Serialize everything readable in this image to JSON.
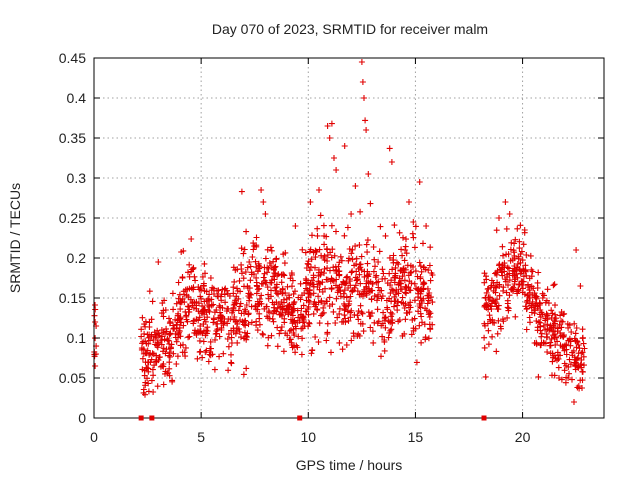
{
  "chart_data": {
    "type": "scatter",
    "title": "Day 070 of 2023, SRMTID for receiver malm",
    "xlabel": "GPS time / hours",
    "ylabel": "SRMTID / TECUs",
    "xlim": [
      0,
      23.8
    ],
    "ylim": [
      0,
      0.45
    ],
    "xticks": [
      0,
      5,
      10,
      15,
      20
    ],
    "xtick_labels": [
      "0",
      "5",
      "10",
      "15",
      "20"
    ],
    "yticks": [
      0,
      0.05,
      0.1,
      0.15,
      0.2,
      0.25,
      0.3,
      0.35,
      0.4,
      0.45
    ],
    "ytick_labels": [
      "0",
      "0.05",
      "0.1",
      "0.15",
      "0.2",
      "0.25",
      "0.3",
      "0.35",
      "0.4",
      "0.45"
    ],
    "grid": true,
    "marker": "+",
    "color": "#e00000",
    "series": [
      {
        "name": "SRMTID",
        "envelope": [
          {
            "hour": 0.0,
            "mean": 0.09,
            "spread": 0.03
          },
          {
            "hour": 2.3,
            "mean": 0.08,
            "spread": 0.035
          },
          {
            "hour": 3.0,
            "mean": 0.085,
            "spread": 0.035
          },
          {
            "hour": 3.8,
            "mean": 0.11,
            "spread": 0.04
          },
          {
            "hour": 4.5,
            "mean": 0.15,
            "spread": 0.04
          },
          {
            "hour": 5.5,
            "mean": 0.12,
            "spread": 0.035
          },
          {
            "hour": 6.5,
            "mean": 0.13,
            "spread": 0.04
          },
          {
            "hour": 7.5,
            "mean": 0.16,
            "spread": 0.04
          },
          {
            "hour": 8.5,
            "mean": 0.15,
            "spread": 0.04
          },
          {
            "hour": 9.5,
            "mean": 0.12,
            "spread": 0.04
          },
          {
            "hour": 10.5,
            "mean": 0.18,
            "spread": 0.045
          },
          {
            "hour": 11.5,
            "mean": 0.15,
            "spread": 0.04
          },
          {
            "hour": 12.5,
            "mean": 0.17,
            "spread": 0.045
          },
          {
            "hour": 13.5,
            "mean": 0.14,
            "spread": 0.04
          },
          {
            "hour": 14.5,
            "mean": 0.18,
            "spread": 0.04
          },
          {
            "hour": 15.6,
            "mean": 0.14,
            "spread": 0.04
          },
          {
            "hour": 18.3,
            "mean": 0.13,
            "spread": 0.04
          },
          {
            "hour": 19.0,
            "mean": 0.16,
            "spread": 0.04
          },
          {
            "hour": 19.8,
            "mean": 0.19,
            "spread": 0.03
          },
          {
            "hour": 20.5,
            "mean": 0.14,
            "spread": 0.035
          },
          {
            "hour": 21.5,
            "mean": 0.1,
            "spread": 0.03
          },
          {
            "hour": 22.8,
            "mean": 0.07,
            "spread": 0.025
          }
        ],
        "segments": [
          [
            0.0,
            0.1
          ],
          [
            2.2,
            15.8
          ],
          [
            18.2,
            22.9
          ]
        ],
        "outliers": [
          [
            0.05,
            0.12
          ],
          [
            0.05,
            0.065
          ],
          [
            0.1,
            0.115
          ],
          [
            3.0,
            0.195
          ],
          [
            6.9,
            0.283
          ],
          [
            7.1,
            0.233
          ],
          [
            7.8,
            0.285
          ],
          [
            7.9,
            0.27
          ],
          [
            8.0,
            0.255
          ],
          [
            9.4,
            0.24
          ],
          [
            10.1,
            0.27
          ],
          [
            10.5,
            0.285
          ],
          [
            10.9,
            0.365
          ],
          [
            11.0,
            0.35
          ],
          [
            11.1,
            0.368
          ],
          [
            11.2,
            0.325
          ],
          [
            11.3,
            0.31
          ],
          [
            11.7,
            0.34
          ],
          [
            12.0,
            0.255
          ],
          [
            12.2,
            0.29
          ],
          [
            12.5,
            0.445
          ],
          [
            12.55,
            0.42
          ],
          [
            12.6,
            0.4
          ],
          [
            12.65,
            0.372
          ],
          [
            12.7,
            0.36
          ],
          [
            12.8,
            0.305
          ],
          [
            12.9,
            0.268
          ],
          [
            13.8,
            0.337
          ],
          [
            13.9,
            0.32
          ],
          [
            14.7,
            0.27
          ],
          [
            14.9,
            0.245
          ],
          [
            15.2,
            0.295
          ],
          [
            15.5,
            0.24
          ],
          [
            18.9,
            0.25
          ],
          [
            19.2,
            0.27
          ],
          [
            19.4,
            0.255
          ],
          [
            20.1,
            0.235
          ],
          [
            22.5,
            0.21
          ],
          [
            22.7,
            0.165
          ],
          [
            22.4,
            0.02
          ],
          [
            21.7,
            0.05
          ]
        ]
      }
    ],
    "gap_markers_x": [
      2.2,
      2.7,
      9.6,
      18.2
    ]
  }
}
